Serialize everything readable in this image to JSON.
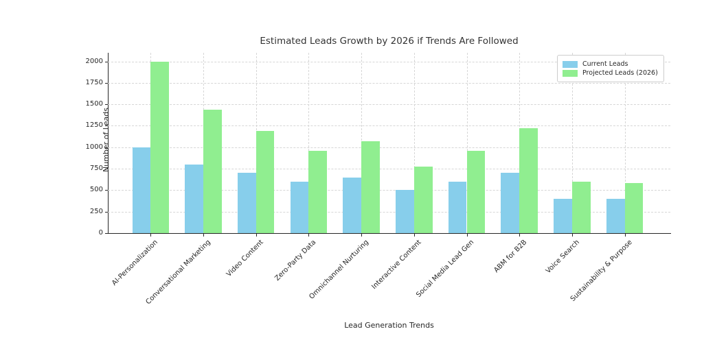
{
  "chart_data": {
    "type": "bar",
    "title": "Estimated Leads Growth by 2026 if Trends Are Followed",
    "xlabel": "Lead Generation Trends",
    "ylabel": "Number of Leads",
    "categories": [
      "AI-Personalization",
      "Conversational Marketing",
      "Video Content",
      "Zero-Party Data",
      "Omnichannel Nurturing",
      "Interactive Content",
      "Social Media Lead Gen",
      "ABM for B2B",
      "Voice Search",
      "Sustainability & Purpose"
    ],
    "series": [
      {
        "name": "Current Leads",
        "color": "#87CEEB",
        "values": [
          1000,
          800,
          700,
          600,
          650,
          500,
          600,
          700,
          400,
          400
        ]
      },
      {
        "name": "Projected Leads (2026)",
        "color": "#90EE90",
        "values": [
          2000,
          1440,
          1190,
          960,
          1070,
          775,
          960,
          1225,
          600,
          580
        ]
      }
    ],
    "yticks": [
      0,
      250,
      500,
      750,
      1000,
      1250,
      1500,
      1750,
      2000
    ],
    "ylim": [
      0,
      2100
    ],
    "grid": true,
    "grid_style": "dashed",
    "legend_position": "upper right",
    "background_color": "#ffffff"
  }
}
